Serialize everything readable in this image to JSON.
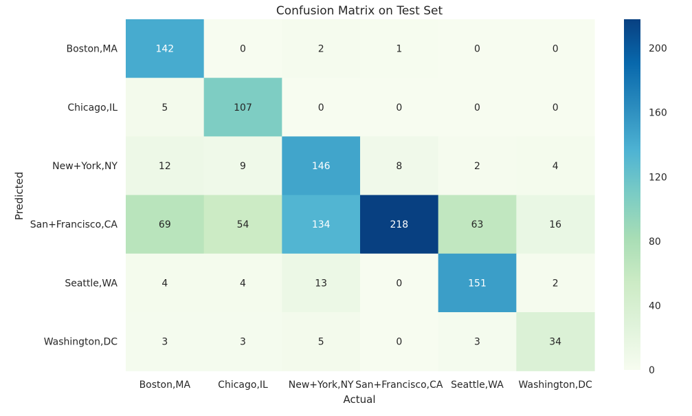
{
  "chart_data": {
    "type": "heatmap",
    "title": "Confusion Matrix on Test Set",
    "xlabel": "Actual",
    "ylabel": "Predicted",
    "x_categories": [
      "Boston,MA",
      "Chicago,IL",
      "New+York,NY",
      "San+Francisco,CA",
      "Seattle,WA",
      "Washington,DC"
    ],
    "y_categories": [
      "Boston,MA",
      "Chicago,IL",
      "New+York,NY",
      "San+Francisco,CA",
      "Seattle,WA",
      "Washington,DC"
    ],
    "values": [
      [
        142,
        0,
        2,
        1,
        0,
        0
      ],
      [
        5,
        107,
        0,
        0,
        0,
        0
      ],
      [
        12,
        9,
        146,
        8,
        2,
        4
      ],
      [
        69,
        54,
        134,
        218,
        63,
        16
      ],
      [
        4,
        4,
        13,
        0,
        151,
        2
      ],
      [
        3,
        3,
        5,
        0,
        3,
        34
      ]
    ],
    "colormap": "GnBu",
    "colorbar": {
      "range": [
        0,
        218
      ],
      "ticks": [
        0,
        40,
        80,
        120,
        160,
        200
      ]
    }
  }
}
